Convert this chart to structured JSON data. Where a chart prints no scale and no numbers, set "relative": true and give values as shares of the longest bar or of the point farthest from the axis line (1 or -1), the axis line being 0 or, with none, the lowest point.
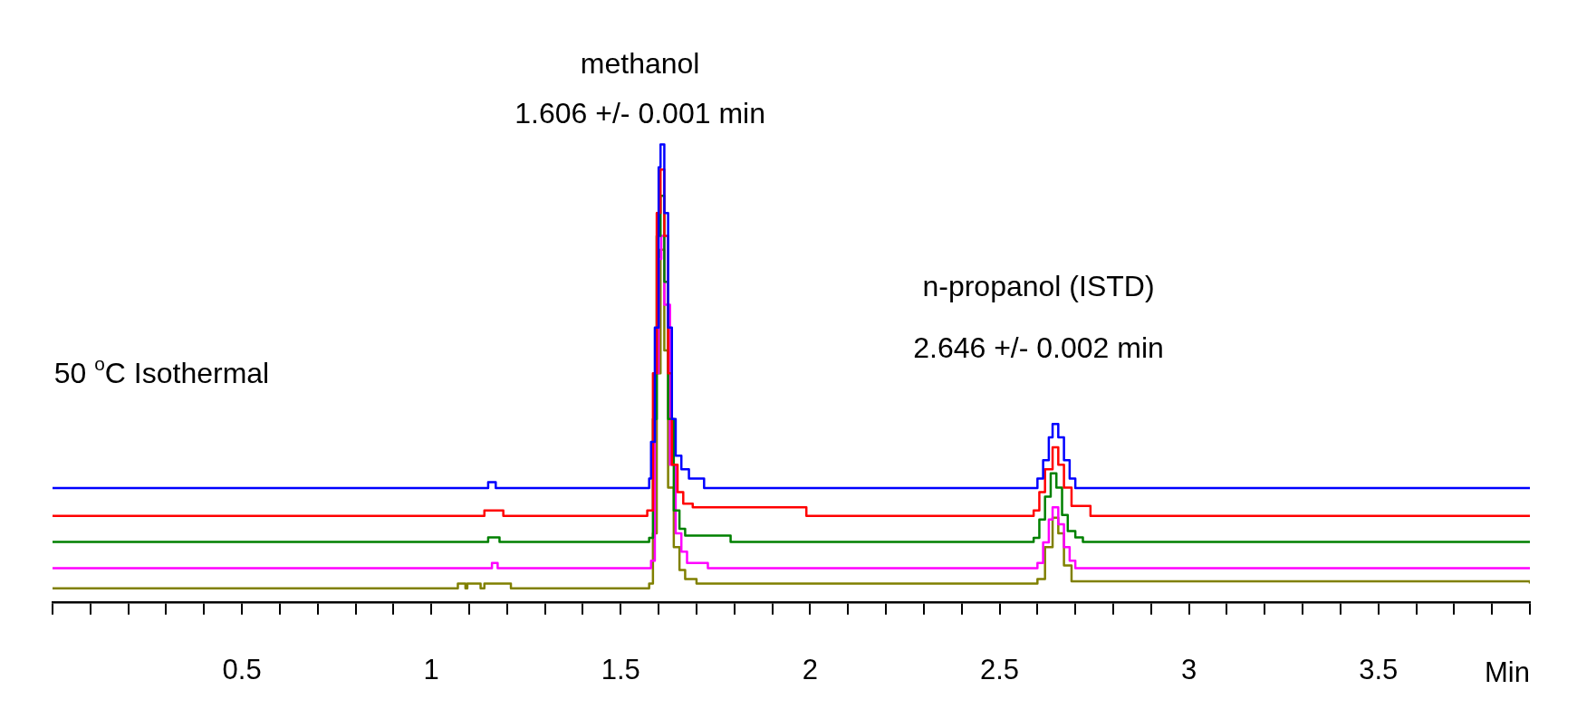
{
  "chart_data": {
    "type": "step",
    "relative": true,
    "xlabel": "Min",
    "xlim": [
      0,
      3.9
    ],
    "xticks": [
      {
        "value": 0,
        "label": null
      },
      {
        "value": 0.1,
        "label": null
      },
      {
        "value": 0.2,
        "label": null
      },
      {
        "value": 0.3,
        "label": null
      },
      {
        "value": 0.4,
        "label": null
      },
      0.5,
      {
        "value": 0.6,
        "label": null
      },
      {
        "value": 0.7,
        "label": null
      },
      {
        "value": 0.8,
        "label": null
      },
      {
        "value": 0.9,
        "label": null
      },
      1,
      {
        "value": 1.1,
        "label": null
      },
      {
        "value": 1.2,
        "label": null
      },
      {
        "value": 1.3,
        "label": null
      },
      {
        "value": 1.4,
        "label": null
      },
      1.5,
      {
        "value": 1.6,
        "label": null
      },
      {
        "value": 1.7,
        "label": null
      },
      {
        "value": 1.8,
        "label": null
      },
      {
        "value": 1.9,
        "label": null
      },
      2,
      {
        "value": 2.1,
        "label": null
      },
      {
        "value": 2.2,
        "label": null
      },
      {
        "value": 2.3,
        "label": null
      },
      {
        "value": 2.4,
        "label": null
      },
      2.5,
      {
        "value": 2.6,
        "label": null
      },
      {
        "value": 2.7,
        "label": null
      },
      {
        "value": 2.8,
        "label": null
      },
      {
        "value": 2.9,
        "label": null
      },
      3,
      {
        "value": 3.1,
        "label": null
      },
      {
        "value": 3.2,
        "label": null
      },
      {
        "value": 3.3,
        "label": null
      },
      {
        "value": 3.4,
        "label": null
      },
      3.5,
      {
        "value": 3.6,
        "label": null
      },
      {
        "value": 3.7,
        "label": null
      },
      {
        "value": 3.8,
        "label": null
      },
      {
        "value": 3.9,
        "label": null
      }
    ],
    "legend": false,
    "marker": "none",
    "line_style": "solid",
    "annotations": [
      "methanol",
      "1.606 +/- 0.001 min",
      "n-propanol (ISTD)",
      "2.646 +/- 0.002 min",
      "50 $^{o}$C Isothermal"
    ],
    "series": [
      {
        "color": "#0000ff",
        "x": [
          0,
          1.15,
          1.17,
          1.575,
          1.58,
          1.59,
          1.6,
          1.605,
          1.615,
          1.625,
          1.635,
          1.645,
          1.66,
          1.68,
          1.72,
          2.59,
          2.6,
          2.615,
          2.63,
          2.64,
          2.655,
          2.67,
          2.685,
          2.7,
          3.9
        ],
        "values": [
          0.249,
          0.262,
          0.249,
          0.27,
          0.35,
          0.6,
          0.95,
          1,
          0.85,
          0.6,
          0.4,
          0.32,
          0.29,
          0.27,
          0.249,
          0.249,
          0.27,
          0.31,
          0.36,
          0.389,
          0.36,
          0.31,
          0.27,
          0.249,
          0.249
        ]
      },
      {
        "color": "#ff0000",
        "x": [
          0,
          1.14,
          1.19,
          1.57,
          1.585,
          1.595,
          1.605,
          1.615,
          1.625,
          1.635,
          1.65,
          1.665,
          1.69,
          1.99,
          2.59,
          2.605,
          2.62,
          2.64,
          2.655,
          2.67,
          2.69,
          2.74,
          3.9
        ],
        "values": [
          0.188,
          0.2,
          0.188,
          0.2,
          0.5,
          0.85,
          0.945,
          0.8,
          0.5,
          0.3,
          0.24,
          0.215,
          0.207,
          0.188,
          0.2,
          0.24,
          0.29,
          0.338,
          0.3,
          0.25,
          0.21,
          0.188,
          0.188
        ]
      },
      {
        "color": "#008000",
        "x": [
          0,
          1.15,
          1.18,
          1.575,
          1.585,
          1.595,
          1.605,
          1.615,
          1.625,
          1.64,
          1.655,
          1.67,
          1.79,
          2.59,
          2.605,
          2.62,
          2.635,
          2.65,
          2.665,
          2.68,
          2.7,
          2.72,
          3.9
        ],
        "values": [
          0.131,
          0.141,
          0.131,
          0.14,
          0.4,
          0.8,
          0.888,
          0.7,
          0.4,
          0.2,
          0.16,
          0.145,
          0.131,
          0.14,
          0.18,
          0.23,
          0.281,
          0.25,
          0.19,
          0.155,
          0.141,
          0.131,
          0.131
        ]
      },
      {
        "color": "#ff00ff",
        "x": [
          0,
          1.16,
          1.175,
          1.58,
          1.59,
          1.6,
          1.607,
          1.615,
          1.63,
          1.645,
          1.66,
          1.675,
          1.73,
          2.6,
          2.615,
          2.63,
          2.64,
          2.655,
          2.67,
          2.685,
          2.7,
          3.9
        ],
        "values": [
          0.074,
          0.085,
          0.074,
          0.09,
          0.5,
          0.75,
          0.8,
          0.65,
          0.3,
          0.15,
          0.11,
          0.085,
          0.074,
          0.085,
          0.13,
          0.18,
          0.207,
          0.17,
          0.12,
          0.09,
          0.074,
          0.074
        ]
      },
      {
        "color": "#808000",
        "x": [
          0,
          1.07,
          1.09,
          1.095,
          1.13,
          1.14,
          1.21,
          1.575,
          1.585,
          1.595,
          1.605,
          1.615,
          1.625,
          1.64,
          1.655,
          1.67,
          1.7,
          2.6,
          2.62,
          2.64,
          2.655,
          2.67,
          2.69,
          3.9
        ],
        "values": [
          0.03,
          0.04,
          0.03,
          0.04,
          0.03,
          0.04,
          0.03,
          0.04,
          0.15,
          0.5,
          0.77,
          0.55,
          0.25,
          0.12,
          0.07,
          0.05,
          0.04,
          0.05,
          0.12,
          0.184,
          0.15,
          0.08,
          0.045,
          0.04
        ]
      }
    ]
  }
}
